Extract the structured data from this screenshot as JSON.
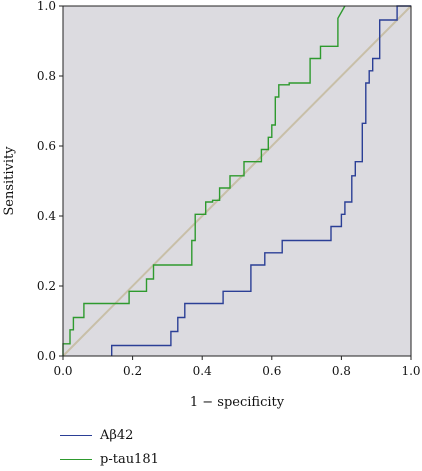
{
  "chart_data": {
    "type": "line",
    "title": "",
    "xlabel": "1 − specificity",
    "ylabel": "Sensitivity",
    "xlim": [
      0.0,
      1.0
    ],
    "ylim": [
      0.0,
      1.0
    ],
    "xticks": [
      "0.0",
      "0.2",
      "0.4",
      "0.6",
      "0.8",
      "1.0"
    ],
    "yticks": [
      "0.0",
      "0.2",
      "0.4",
      "0.6",
      "0.8",
      "1.0"
    ],
    "grid": false,
    "legend_position": "bottom-left",
    "background_color": "#dcdbe0",
    "reference_line": {
      "x": [
        0,
        1
      ],
      "y": [
        0,
        1
      ],
      "color": "#c8bfa8"
    },
    "series": [
      {
        "name": "Aβ42",
        "color": "#2b3f96",
        "x": [
          0.14,
          0.14,
          0.31,
          0.31,
          0.33,
          0.33,
          0.35,
          0.35,
          0.46,
          0.46,
          0.54,
          0.54,
          0.58,
          0.58,
          0.63,
          0.63,
          0.77,
          0.77,
          0.8,
          0.8,
          0.81,
          0.81,
          0.83,
          0.83,
          0.84,
          0.84,
          0.86,
          0.86,
          0.87,
          0.87,
          0.88,
          0.88,
          0.89,
          0.89,
          0.91,
          0.91,
          0.96,
          0.96,
          0.97,
          0.97,
          1.0
        ],
        "y": [
          0.0,
          0.03,
          0.03,
          0.07,
          0.07,
          0.11,
          0.11,
          0.15,
          0.15,
          0.185,
          0.185,
          0.26,
          0.26,
          0.295,
          0.295,
          0.33,
          0.33,
          0.37,
          0.37,
          0.405,
          0.405,
          0.44,
          0.44,
          0.515,
          0.515,
          0.555,
          0.555,
          0.665,
          0.665,
          0.78,
          0.78,
          0.815,
          0.815,
          0.85,
          0.85,
          0.96,
          0.96,
          1.0,
          1.0,
          1.0,
          1.0
        ]
      },
      {
        "name": "p-tau181",
        "color": "#2e9a2e",
        "x": [
          0.0,
          0.0,
          0.02,
          0.02,
          0.03,
          0.03,
          0.06,
          0.06,
          0.19,
          0.19,
          0.24,
          0.24,
          0.26,
          0.26,
          0.37,
          0.37,
          0.38,
          0.38,
          0.41,
          0.41,
          0.43,
          0.43,
          0.45,
          0.45,
          0.48,
          0.48,
          0.52,
          0.52,
          0.57,
          0.57,
          0.59,
          0.59,
          0.6,
          0.6,
          0.61,
          0.61,
          0.62,
          0.62,
          0.65,
          0.65,
          0.71,
          0.71,
          0.74,
          0.74,
          0.79,
          0.79,
          0.81
        ],
        "y": [
          0.0,
          0.035,
          0.035,
          0.075,
          0.075,
          0.11,
          0.11,
          0.15,
          0.15,
          0.185,
          0.185,
          0.22,
          0.22,
          0.26,
          0.26,
          0.33,
          0.33,
          0.405,
          0.405,
          0.44,
          0.44,
          0.445,
          0.445,
          0.48,
          0.48,
          0.515,
          0.515,
          0.555,
          0.555,
          0.59,
          0.59,
          0.625,
          0.625,
          0.66,
          0.66,
          0.74,
          0.74,
          0.775,
          0.775,
          0.78,
          0.78,
          0.85,
          0.85,
          0.885,
          0.885,
          0.965,
          1.0
        ]
      }
    ]
  }
}
